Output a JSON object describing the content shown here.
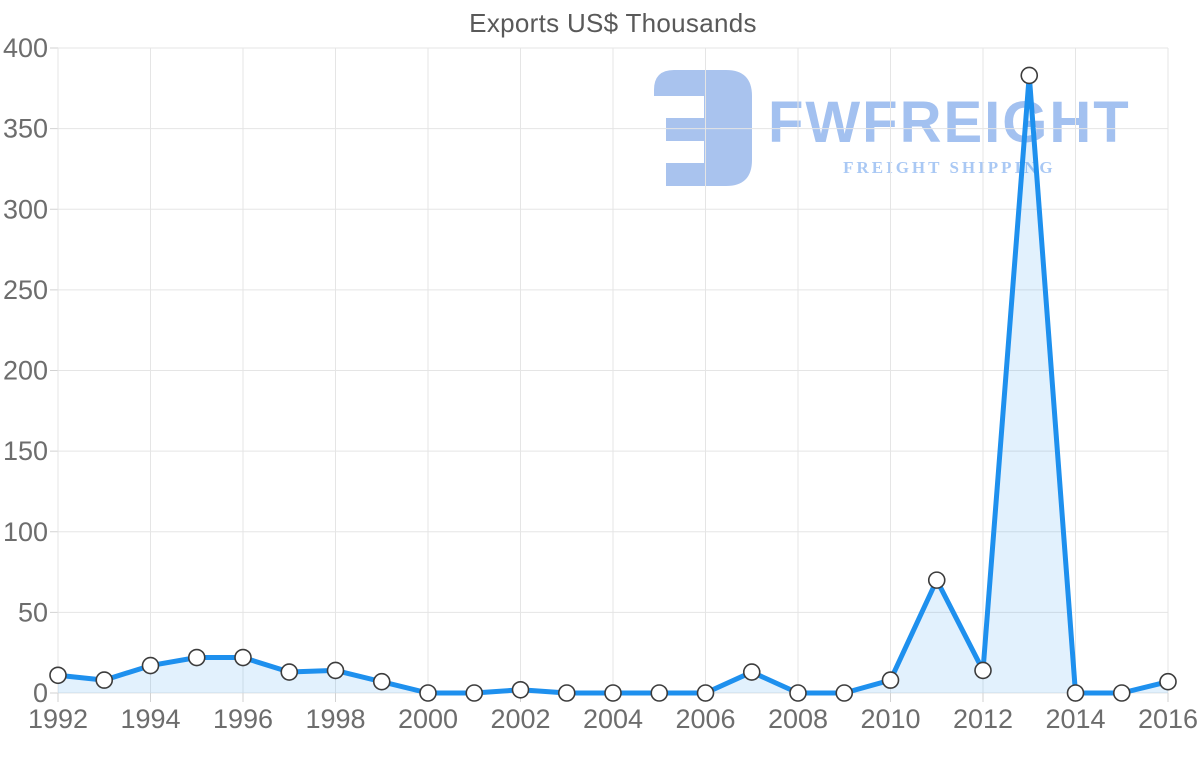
{
  "chart_data": {
    "type": "area",
    "title": "Exports US$ Thousands",
    "x": [
      1992,
      1993,
      1994,
      1995,
      1996,
      1997,
      1998,
      1999,
      2000,
      2001,
      2002,
      2003,
      2004,
      2005,
      2006,
      2007,
      2008,
      2009,
      2010,
      2011,
      2012,
      2013,
      2014,
      2015,
      2016
    ],
    "values": [
      11,
      8,
      17,
      22,
      22,
      13,
      14,
      7,
      0,
      0,
      2,
      0,
      0,
      0,
      0,
      13,
      0,
      0,
      8,
      70,
      14,
      383,
      0,
      0,
      7
    ],
    "xlabel": "",
    "ylabel": "",
    "ylim": [
      0,
      400
    ],
    "ytick_step": 50,
    "xtick_step": 2,
    "grid": true,
    "legend": "none",
    "colors": {
      "line": "#1e90ee",
      "area_fill": "rgba(33, 150, 243, 0.13)",
      "marker_fill": "#ffffff",
      "marker_stroke": "#3c3c3c",
      "gridline": "#e5e5e5",
      "tick": "#d2d2d2",
      "label": "#6d6d6d",
      "title": "#595959"
    }
  },
  "watermark": {
    "brand": "FWFREIGHT",
    "tagline": "FREIGHT SHIPPING",
    "icon": "fwfreight-logo-icon",
    "color": "#a3c1f0"
  }
}
